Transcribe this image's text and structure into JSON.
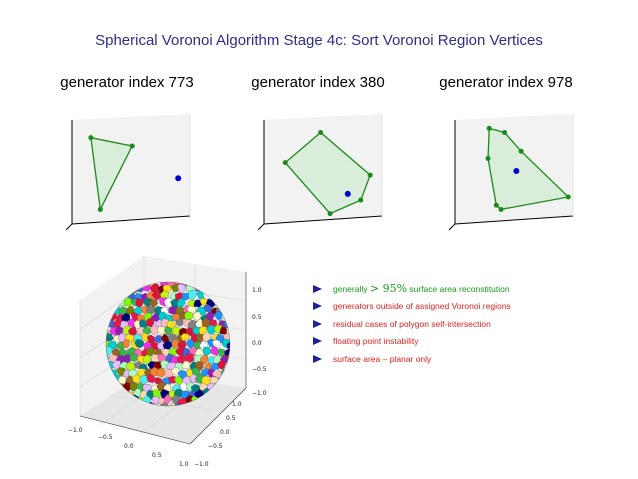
{
  "title": "Spherical Voronoi Algorithm Stage 4c: Sort Voronoi Region Vertices",
  "panels": [
    {
      "label": "generator index 773",
      "polygon": [
        [
          0.16,
          0.17
        ],
        [
          0.51,
          0.25
        ],
        [
          0.24,
          0.86
        ]
      ],
      "generator": [
        0.9,
        0.56
      ]
    },
    {
      "label": "generator index 380",
      "polygon": [
        [
          0.48,
          0.12
        ],
        [
          0.9,
          0.53
        ],
        [
          0.82,
          0.77
        ],
        [
          0.56,
          0.9
        ],
        [
          0.18,
          0.41
        ]
      ],
      "generator": [
        0.71,
        0.71
      ]
    },
    {
      "label": "generator index 978",
      "polygon": [
        [
          0.29,
          0.08
        ],
        [
          0.42,
          0.12
        ],
        [
          0.56,
          0.3
        ],
        [
          0.96,
          0.74
        ],
        [
          0.39,
          0.86
        ],
        [
          0.35,
          0.82
        ],
        [
          0.28,
          0.37
        ]
      ],
      "generator": [
        0.52,
        0.49
      ]
    }
  ],
  "bullets": [
    {
      "kind": "green",
      "prefix": "generally ",
      "math": "> 95%",
      "suffix": " surface area reconstitution"
    },
    {
      "kind": "red",
      "prefix": "generators outside of assigned Voronoi regions",
      "math": "",
      "suffix": ""
    },
    {
      "kind": "red",
      "prefix": "residual cases of polygon self-intersection",
      "math": "",
      "suffix": ""
    },
    {
      "kind": "red",
      "prefix": "floating point instability",
      "math": "",
      "suffix": ""
    },
    {
      "kind": "red",
      "prefix": "surface area – planar only",
      "math": "",
      "suffix": ""
    }
  ],
  "sphere_axes": {
    "z_ticks": [
      "1.0",
      "0.5",
      "0.0",
      "−0.5",
      "−1.0"
    ],
    "x_ticks": [
      "−1.0",
      "−0.5",
      "0.0",
      "0.5",
      "1.0"
    ],
    "y_ticks": [
      "1.0",
      "0.5",
      "0.0",
      "−0.5",
      "−1.0"
    ]
  },
  "colors": {
    "title": "#2d2d8c",
    "polygon_edge": "#1a8a1a",
    "polygon_fill": "#d6ebd6",
    "generator": "#0000cc",
    "bullet_marker": "#1f1f9a",
    "good": "#1a9a1a",
    "bad": "#e02020"
  }
}
